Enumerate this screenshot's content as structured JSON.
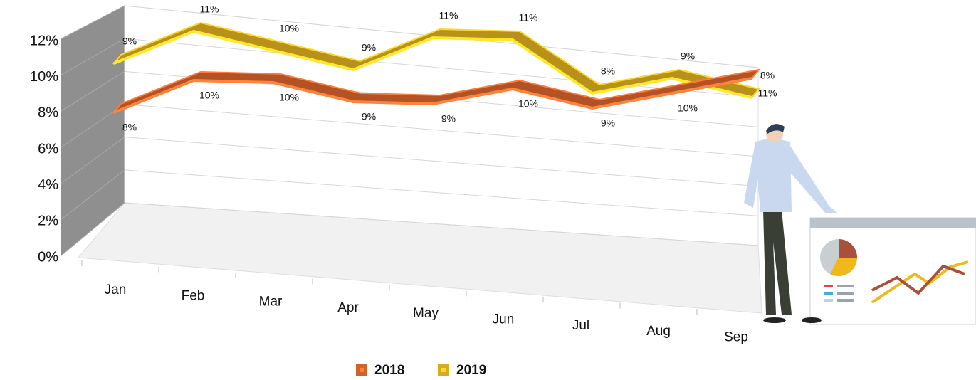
{
  "chart_data": {
    "type": "line3d",
    "categories": [
      "Jan",
      "Feb",
      "Mar",
      "Apr",
      "May",
      "Jun",
      "Jul",
      "Aug",
      "Sep"
    ],
    "series": [
      {
        "name": "2018",
        "color": "#d2622c",
        "values": [
          8,
          10,
          10,
          9,
          9,
          10,
          9,
          10,
          11
        ],
        "value_labels": [
          "8%",
          "10%",
          "10%",
          "9%",
          "9%",
          "10%",
          "9%",
          "10%",
          "11%"
        ]
      },
      {
        "name": "2019",
        "color": "#d9ab1e",
        "values": [
          9,
          11,
          10,
          9,
          11,
          11,
          8,
          9,
          8
        ],
        "value_labels": [
          "9%",
          "11%",
          "10%",
          "9%",
          "11%",
          "11%",
          "8%",
          "9%",
          "8%"
        ]
      }
    ],
    "ylim": [
      0,
      12
    ],
    "yticks": [
      {
        "value": 0,
        "label": "0%"
      },
      {
        "value": 2,
        "label": "2%"
      },
      {
        "value": 4,
        "label": "4%"
      },
      {
        "value": 6,
        "label": "6%"
      },
      {
        "value": 8,
        "label": "8%"
      },
      {
        "value": 10,
        "label": "10%"
      },
      {
        "value": 12,
        "label": "12%"
      }
    ],
    "grid": true
  }
}
